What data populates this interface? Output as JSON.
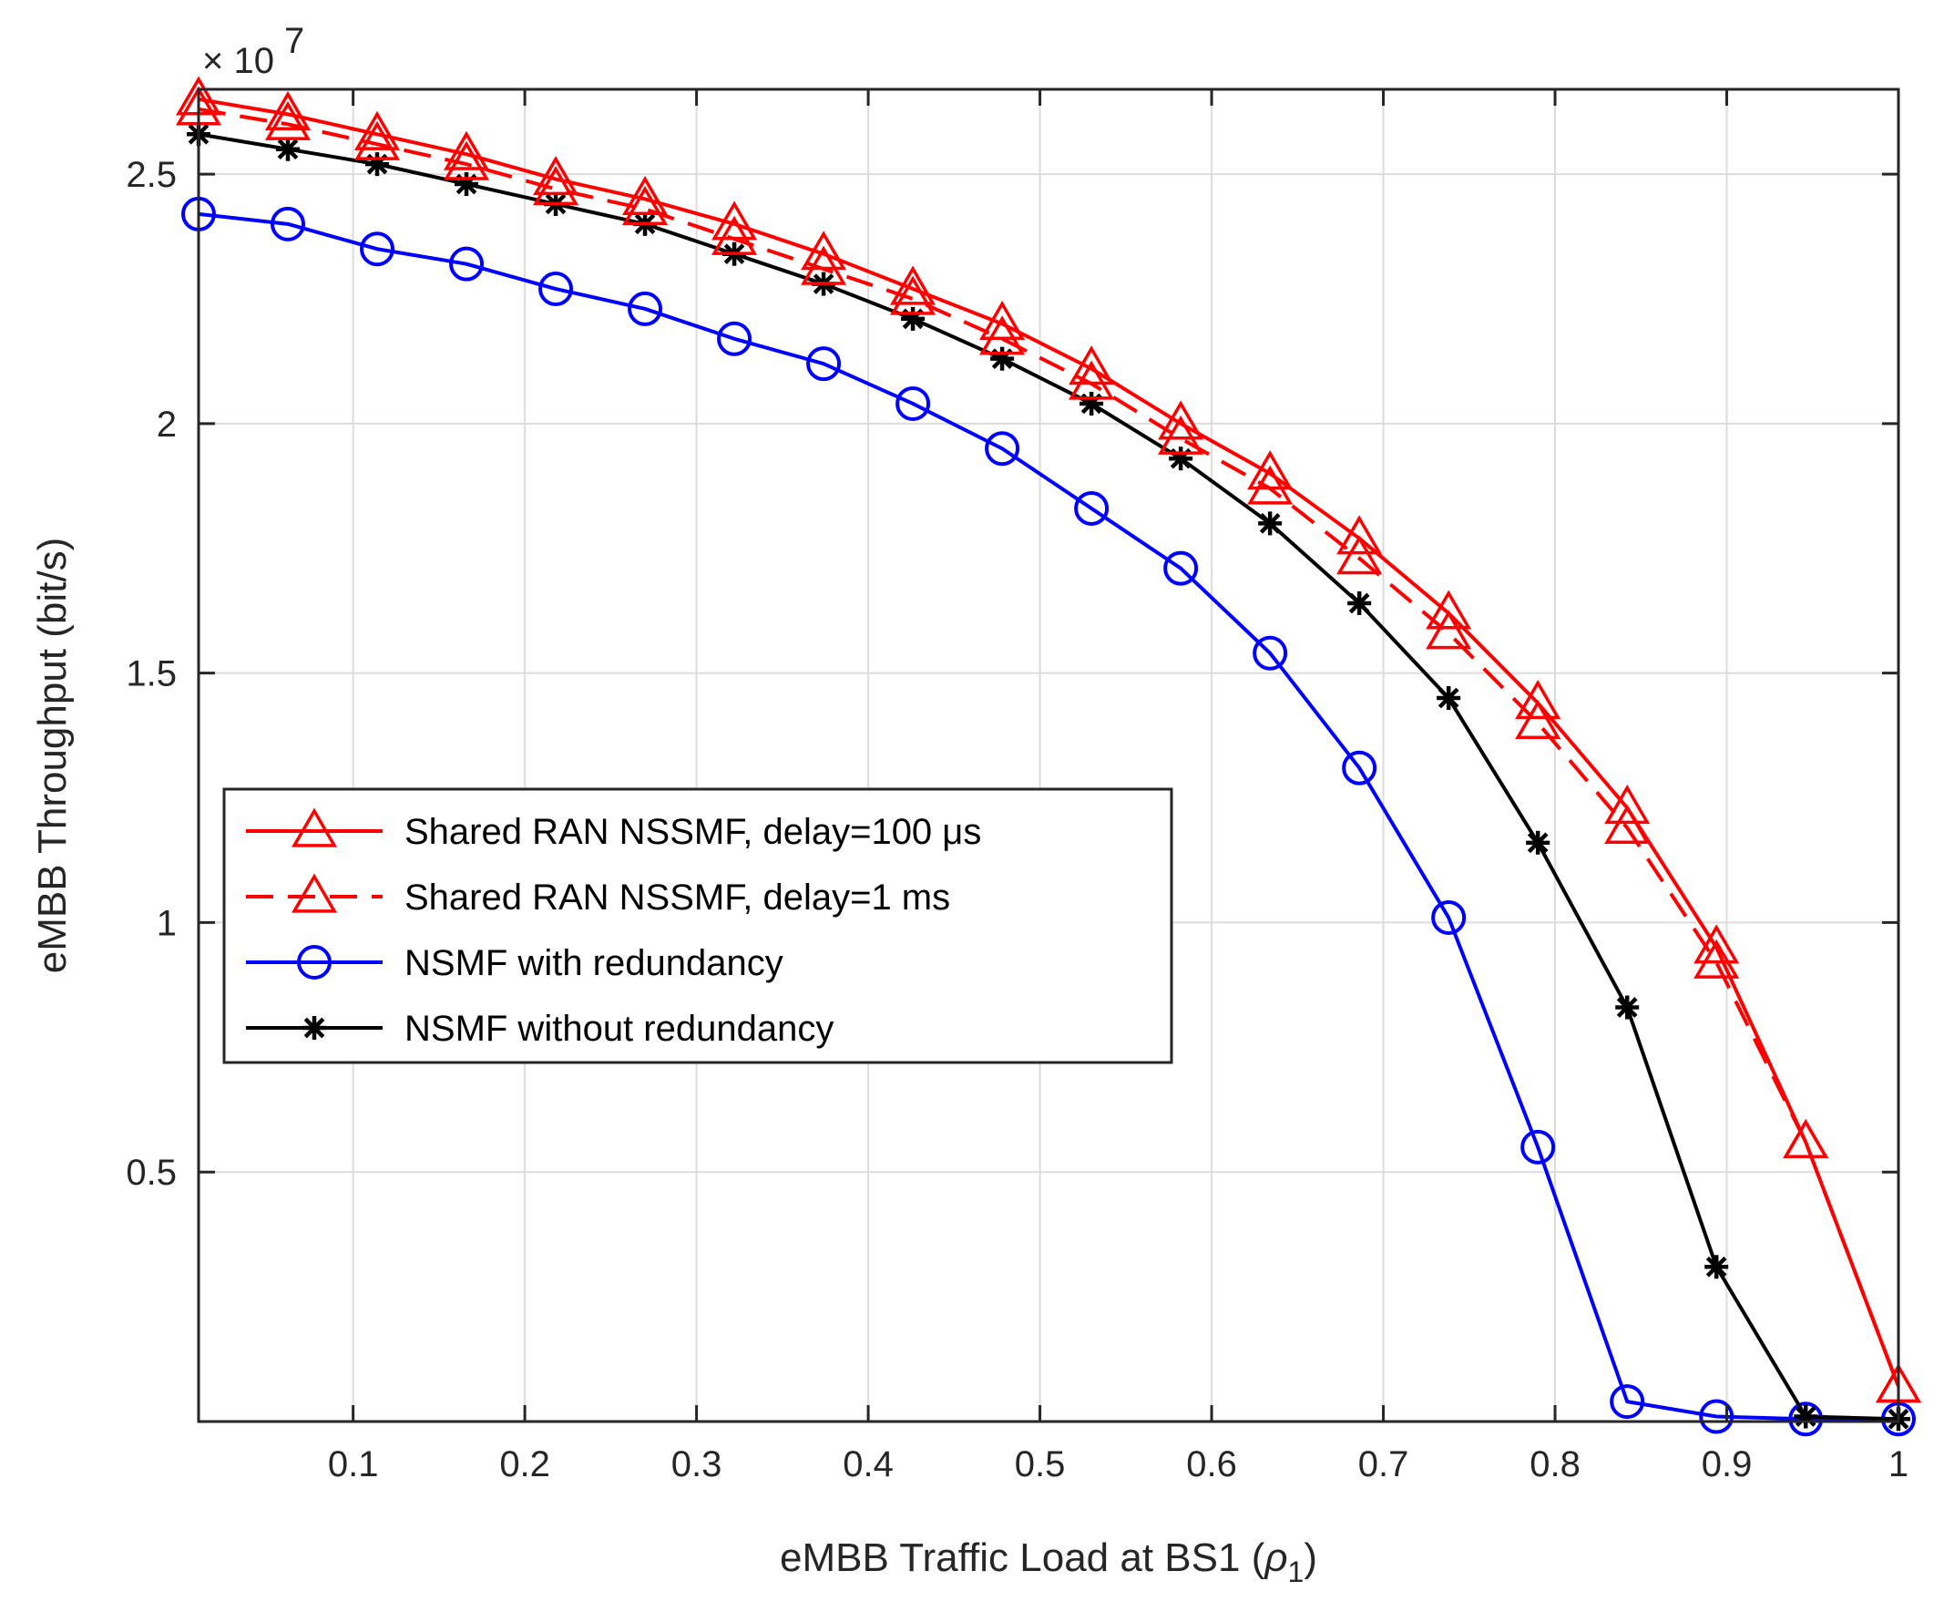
{
  "chart_data": {
    "type": "line",
    "title": "",
    "xlabel": "eMBB Traffic Load at BS1 (",
    "xlabel_symbol": "ρ",
    "xlabel_subscript": "1",
    "xlabel_close": ")",
    "ylabel": "eMBB Throughput (bit/s)",
    "y_exponent_base": "× 10",
    "y_exponent_power": "7",
    "xlim": [
      0.01,
      1.0
    ],
    "ylim": [
      0,
      2.67
    ],
    "xticks": [
      0.1,
      0.2,
      0.3,
      0.4,
      0.5,
      0.6,
      0.7,
      0.8,
      0.9,
      1.0
    ],
    "xtick_labels": [
      "0.1",
      "0.2",
      "0.3",
      "0.4",
      "0.5",
      "0.6",
      "0.7",
      "0.8",
      "0.9",
      "1"
    ],
    "yticks": [
      0.5,
      1.0,
      1.5,
      2.0,
      2.5
    ],
    "ytick_labels": [
      "0.5",
      "1",
      "1.5",
      "2",
      "2.5"
    ],
    "grid": true,
    "legend_position": "center-left",
    "x": [
      0.01,
      0.062,
      0.114,
      0.166,
      0.218,
      0.27,
      0.322,
      0.374,
      0.426,
      0.478,
      0.53,
      0.582,
      0.634,
      0.686,
      0.738,
      0.79,
      0.842,
      0.894,
      0.946,
      1.0
    ],
    "series": [
      {
        "name": "Shared RAN NSSMF, delay=100 μs",
        "color": "#ff0000",
        "dash": "solid",
        "marker": "triangle",
        "values": [
          2.65,
          2.62,
          2.58,
          2.54,
          2.49,
          2.45,
          2.4,
          2.34,
          2.27,
          2.2,
          2.11,
          2.0,
          1.9,
          1.77,
          1.62,
          1.44,
          1.23,
          0.95,
          0.56,
          0.07
        ]
      },
      {
        "name": "Shared RAN NSSMF, delay=1 ms",
        "color": "#ff0000",
        "dash": "dashed",
        "marker": "triangle",
        "values": [
          2.63,
          2.6,
          2.56,
          2.52,
          2.47,
          2.43,
          2.37,
          2.31,
          2.25,
          2.17,
          2.08,
          1.97,
          1.87,
          1.73,
          1.58,
          1.4,
          1.19,
          0.92,
          0.56,
          0.07
        ]
      },
      {
        "name": "NSMF with redundancy",
        "color": "#0000ff",
        "dash": "solid",
        "marker": "circle",
        "values": [
          2.42,
          2.4,
          2.35,
          2.32,
          2.27,
          2.23,
          2.17,
          2.12,
          2.04,
          1.95,
          1.83,
          1.71,
          1.54,
          1.31,
          1.01,
          0.55,
          0.04,
          0.01,
          0.005,
          0.005
        ]
      },
      {
        "name": "NSMF without redundancy",
        "color": "#000000",
        "dash": "solid",
        "marker": "star",
        "values": [
          2.58,
          2.55,
          2.52,
          2.48,
          2.44,
          2.4,
          2.34,
          2.28,
          2.21,
          2.13,
          2.04,
          1.93,
          1.8,
          1.64,
          1.45,
          1.16,
          0.83,
          0.31,
          0.01,
          0.005
        ]
      }
    ]
  }
}
